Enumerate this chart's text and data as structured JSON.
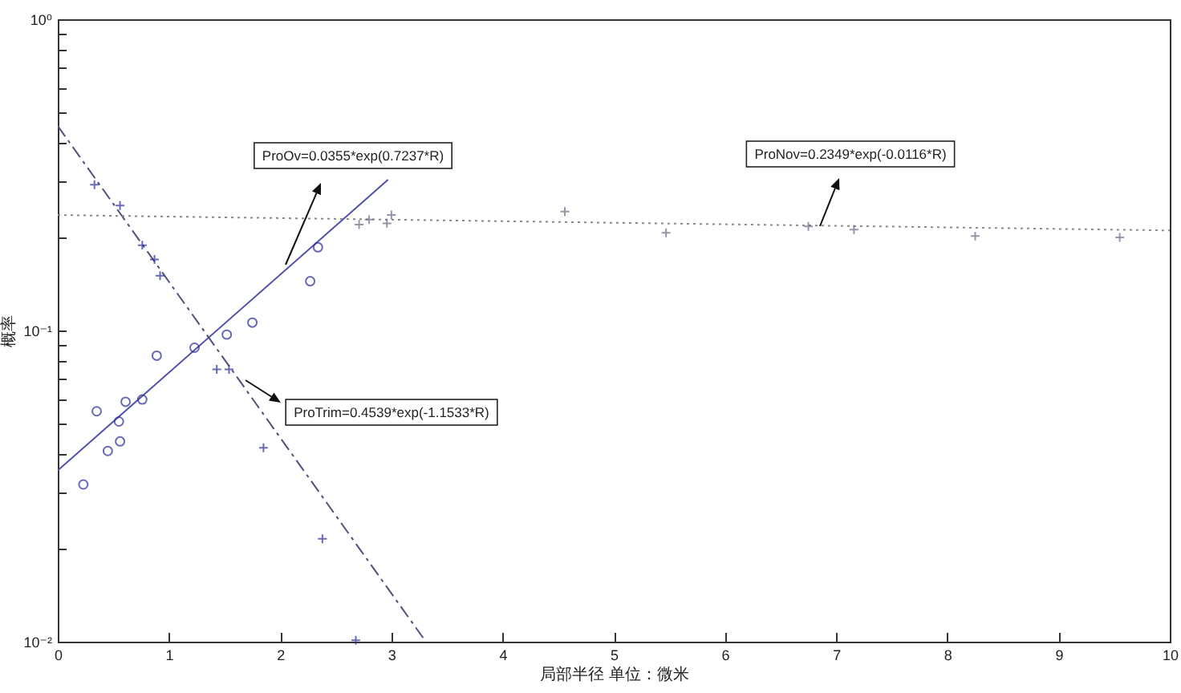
{
  "chart_data": {
    "type": "scatter",
    "xlabel": "局部半径 单位：微米",
    "ylabel": "概率",
    "log": "y",
    "xlim": [
      0,
      10
    ],
    "ylim": [
      0.01,
      1
    ],
    "xticks": [
      0,
      1,
      2,
      3,
      4,
      5,
      6,
      7,
      8,
      9,
      10
    ],
    "yticks": [
      {
        "value": 0.01,
        "label": "10⁻²"
      },
      {
        "value": 0.02,
        "label": null
      },
      {
        "value": 0.03,
        "label": null
      },
      {
        "value": 0.04,
        "label": null
      },
      {
        "value": 0.05,
        "label": null
      },
      {
        "value": 0.06,
        "label": null
      },
      {
        "value": 0.07,
        "label": null
      },
      {
        "value": 0.08,
        "label": null
      },
      {
        "value": 0.09,
        "label": null
      },
      {
        "value": 0.1,
        "label": "10⁻¹"
      },
      {
        "value": 0.2,
        "label": null
      },
      {
        "value": 0.3,
        "label": null
      },
      {
        "value": 0.4,
        "label": null
      },
      {
        "value": 0.5,
        "label": null
      },
      {
        "value": 0.6,
        "label": null
      },
      {
        "value": 0.7,
        "label": null
      },
      {
        "value": 0.8,
        "label": null
      },
      {
        "value": 0.9,
        "label": null
      },
      {
        "value": 1,
        "label": "10⁰"
      }
    ],
    "series": [
      {
        "type": "scatter",
        "marker": "circle",
        "color": "#2b2b99",
        "x": [
          0.23,
          0.35,
          0.45,
          0.55,
          0.56,
          0.61,
          0.76,
          0.89,
          1.23,
          1.52,
          1.75,
          2.27,
          2.34
        ],
        "values": [
          0.032,
          0.055,
          0.041,
          0.051,
          0.044,
          0.059,
          0.06,
          0.083,
          0.088,
          0.097,
          0.106,
          0.144,
          0.185
        ]
      },
      {
        "type": "scatter",
        "marker": "cross",
        "color": "#2b2b99",
        "x": [
          0.33,
          0.56,
          0.76,
          0.87,
          0.92,
          1.43,
          1.54,
          1.85,
          2.38,
          2.68
        ],
        "values": [
          0.294,
          0.252,
          0.188,
          0.169,
          0.15,
          0.075,
          0.075,
          0.042,
          0.0214,
          0.0101
        ]
      },
      {
        "type": "scatter",
        "marker": "cross",
        "color": "#6a6a88",
        "x": [
          2.71,
          2.8,
          2.96,
          3.0,
          4.56,
          5.47,
          6.75,
          7.16,
          8.25,
          9.55
        ],
        "values": [
          0.219,
          0.227,
          0.221,
          0.235,
          0.241,
          0.206,
          0.216,
          0.211,
          0.201,
          0.199
        ]
      },
      {
        "type": "line",
        "line_style": "solid",
        "color": "#5050aa",
        "x": [
          0,
          2.97
        ],
        "values": [
          0.0355,
          0.305
        ]
      },
      {
        "type": "line",
        "line_style": "dashed",
        "color": "#50507a",
        "x": [
          0,
          3.31
        ],
        "values": [
          0.4539,
          0.01
        ]
      },
      {
        "type": "line",
        "line_style": "dotted",
        "color": "#888888",
        "x": [
          0,
          10
        ],
        "values": [
          0.2349,
          0.2096
        ]
      }
    ],
    "annotations": [
      "ProOv=0.0355*exp(0.7237*R)",
      "ProTrim=0.4539*exp(-1.1533*R)",
      "ProNov=0.2349*exp(-0.0116*R)"
    ]
  }
}
